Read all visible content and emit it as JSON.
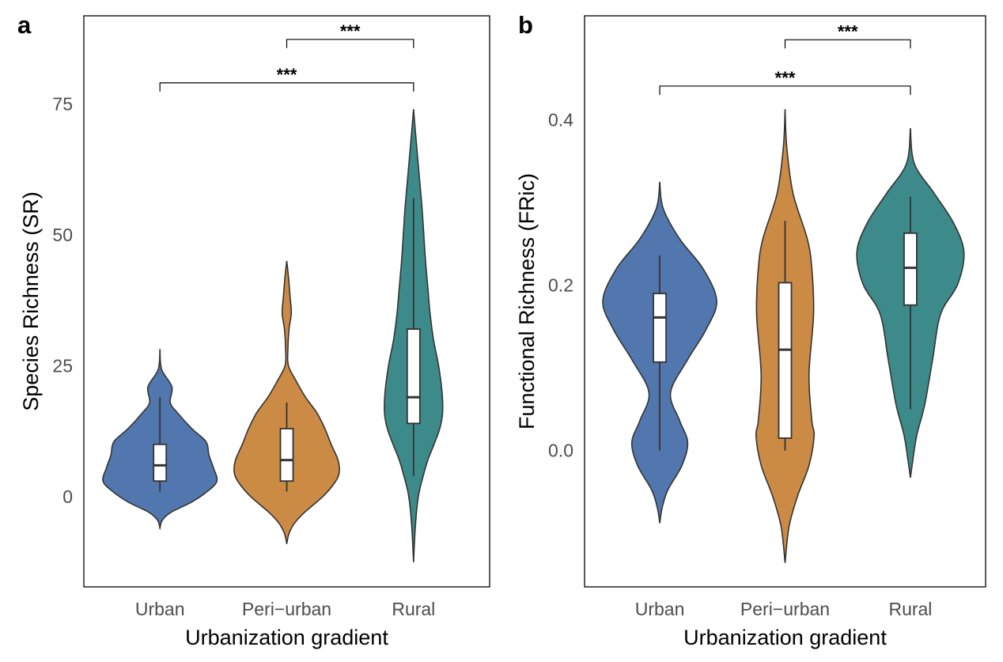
{
  "chart_data": [
    {
      "type": "violin",
      "panel_label": "a",
      "xlabel": "Urbanization gradient",
      "ylabel": "Species Richness (SR)",
      "categories": [
        "Urban",
        "Peri−urban",
        "Rural"
      ],
      "colors": [
        "#5177ae",
        "#cc8b45",
        "#3d8a8a"
      ],
      "xlim": [
        0.4,
        3.6
      ],
      "ylim": [
        -17.2,
        91.8
      ],
      "yticks": [
        0,
        25,
        50,
        75
      ],
      "ytick_labels": [
        "0",
        "25",
        "50",
        "75"
      ],
      "grid": false,
      "boxes": [
        {
          "whisker_low": 1,
          "q1": 3,
          "median": 6,
          "q3": 10,
          "whisker_high": 19
        },
        {
          "whisker_low": 1,
          "q1": 3,
          "median": 7,
          "q3": 13,
          "whisker_high": 18
        },
        {
          "whisker_low": 4,
          "q1": 14,
          "median": 19,
          "q3": 32,
          "whisker_high": 57
        }
      ],
      "violin_density": [
        [
          [
            28.2,
            0
          ],
          [
            24.3,
            0.03
          ],
          [
            21,
            0.21
          ],
          [
            18,
            0.18
          ],
          [
            16,
            0.31
          ],
          [
            13,
            0.56
          ],
          [
            10.5,
            0.81
          ],
          [
            8,
            0.86
          ],
          [
            5.5,
            0.94
          ],
          [
            3,
            1
          ],
          [
            1,
            0.83
          ],
          [
            -1,
            0.56
          ],
          [
            -3,
            0.19
          ],
          [
            -4.5,
            0.04
          ],
          [
            -6,
            0
          ]
        ],
        [
          [
            45,
            0
          ],
          [
            42,
            0.03
          ],
          [
            38,
            0.06
          ],
          [
            35,
            0.08
          ],
          [
            32,
            0.04
          ],
          [
            28,
            0.02
          ],
          [
            25,
            0.03
          ],
          [
            22,
            0.17
          ],
          [
            19,
            0.33
          ],
          [
            16,
            0.53
          ],
          [
            13,
            0.67
          ],
          [
            10,
            0.78
          ],
          [
            7,
            0.9
          ],
          [
            4.5,
            0.92
          ],
          [
            2.5,
            0.83
          ],
          [
            0,
            0.63
          ],
          [
            -3,
            0.31
          ],
          [
            -5,
            0.14
          ],
          [
            -7,
            0.04
          ],
          [
            -9,
            0
          ]
        ],
        [
          [
            74,
            0
          ],
          [
            70,
            0.03
          ],
          [
            65,
            0.07
          ],
          [
            60,
            0.11
          ],
          [
            55,
            0.15
          ],
          [
            50,
            0.18
          ],
          [
            45,
            0.21
          ],
          [
            40,
            0.25
          ],
          [
            35,
            0.29
          ],
          [
            30,
            0.35
          ],
          [
            25,
            0.44
          ],
          [
            20,
            0.5
          ],
          [
            16,
            0.51
          ],
          [
            13,
            0.46
          ],
          [
            10,
            0.36
          ],
          [
            7,
            0.25
          ],
          [
            4,
            0.17
          ],
          [
            1,
            0.1
          ],
          [
            -2,
            0.06
          ],
          [
            -6,
            0.03
          ],
          [
            -10,
            0.01
          ],
          [
            -12.5,
            0
          ]
        ]
      ],
      "significance": [
        {
          "from": "Urban",
          "to": "Rural",
          "label": "***",
          "y": 79
        },
        {
          "from": "Peri−urban",
          "to": "Rural",
          "label": "***",
          "y": 87.3
        }
      ]
    },
    {
      "type": "violin",
      "panel_label": "b",
      "xlabel": "Urbanization gradient",
      "ylabel": "Functional Richness (FRic)",
      "categories": [
        "Urban",
        "Peri−urban",
        "Rural"
      ],
      "colors": [
        "#5177ae",
        "#cc8b45",
        "#3d8a8a"
      ],
      "xlim": [
        0.4,
        3.6
      ],
      "ylim": [
        -0.165,
        0.526
      ],
      "yticks": [
        0.0,
        0.2,
        0.4
      ],
      "ytick_labels": [
        "0.0",
        "0.2",
        "0.4"
      ],
      "grid": false,
      "boxes": [
        {
          "whisker_low": 0.0,
          "q1": 0.107,
          "median": 0.161,
          "q3": 0.19,
          "whisker_high": 0.236
        },
        {
          "whisker_low": 0.0,
          "q1": 0.015,
          "median": 0.122,
          "q3": 0.203,
          "whisker_high": 0.278
        },
        {
          "whisker_low": 0.05,
          "q1": 0.176,
          "median": 0.221,
          "q3": 0.263,
          "whisker_high": 0.307
        }
      ],
      "violin_density": [
        [
          [
            0.325,
            0
          ],
          [
            0.293,
            0.06
          ],
          [
            0.256,
            0.35
          ],
          [
            0.22,
            0.76
          ],
          [
            0.181,
            1
          ],
          [
            0.146,
            0.81
          ],
          [
            0.11,
            0.49
          ],
          [
            0.07,
            0.19
          ],
          [
            0.036,
            0.35
          ],
          [
            0.01,
            0.49
          ],
          [
            -0.018,
            0.39
          ],
          [
            -0.048,
            0.14
          ],
          [
            -0.07,
            0.04
          ],
          [
            -0.088,
            0
          ]
        ],
        [
          [
            0.413,
            0
          ],
          [
            0.367,
            0.03
          ],
          [
            0.311,
            0.14
          ],
          [
            0.256,
            0.39
          ],
          [
            0.22,
            0.47
          ],
          [
            0.165,
            0.5
          ],
          [
            0.092,
            0.42
          ],
          [
            0.036,
            0.47
          ],
          [
            0.018,
            0.51
          ],
          [
            -0.018,
            0.42
          ],
          [
            -0.055,
            0.22
          ],
          [
            -0.092,
            0.07
          ],
          [
            -0.136,
            0
          ]
        ],
        [
          [
            0.39,
            0
          ],
          [
            0.347,
            0.07
          ],
          [
            0.311,
            0.42
          ],
          [
            0.275,
            0.76
          ],
          [
            0.24,
            0.94
          ],
          [
            0.201,
            0.83
          ],
          [
            0.165,
            0.53
          ],
          [
            0.11,
            0.39
          ],
          [
            0.055,
            0.25
          ],
          [
            0.018,
            0.11
          ],
          [
            -0.018,
            0.03
          ],
          [
            -0.033,
            0
          ]
        ]
      ],
      "significance": [
        {
          "from": "Urban",
          "to": "Rural",
          "label": "***",
          "y": 0.441
        },
        {
          "from": "Peri−urban",
          "to": "Rural",
          "label": "***",
          "y": 0.497
        }
      ]
    }
  ]
}
